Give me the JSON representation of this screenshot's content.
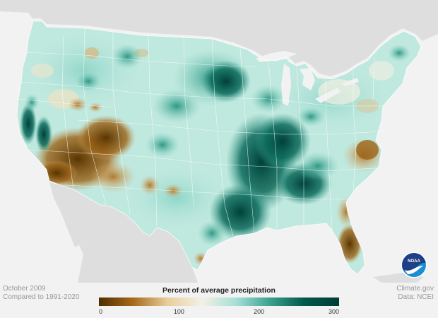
{
  "map": {
    "title": "",
    "colors": {
      "background": "#f2f2f2",
      "neighbor_land": "#dedede",
      "water": "#f2f2f2",
      "dry_extreme": "#5a3500",
      "dry": "#b47a2a",
      "near_average": "#f3efe2",
      "wet": "#7dcfc0",
      "wet_extreme": "#003d33"
    }
  },
  "footer": {
    "period": "October 2009",
    "comparison": "Compared to 1991-2020",
    "credit": "Climate.gov",
    "source": "Data: NCEI"
  },
  "legend": {
    "title": "Percent of average precipitation",
    "ticks": [
      "0",
      "100",
      "200",
      "300"
    ],
    "tick_values": [
      0,
      100,
      200,
      300
    ],
    "range": [
      0,
      300
    ],
    "gradient": [
      "#4d2e00",
      "#a8691c",
      "#e8cf9c",
      "#f4f0e6",
      "#a6e0d6",
      "#3aa08e",
      "#00574a",
      "#003d33"
    ]
  },
  "logo": {
    "text": "NOAA",
    "colors": {
      "top": "#1f3f86",
      "bottom": "#1b8fd3",
      "ring": "#ffffff"
    }
  }
}
